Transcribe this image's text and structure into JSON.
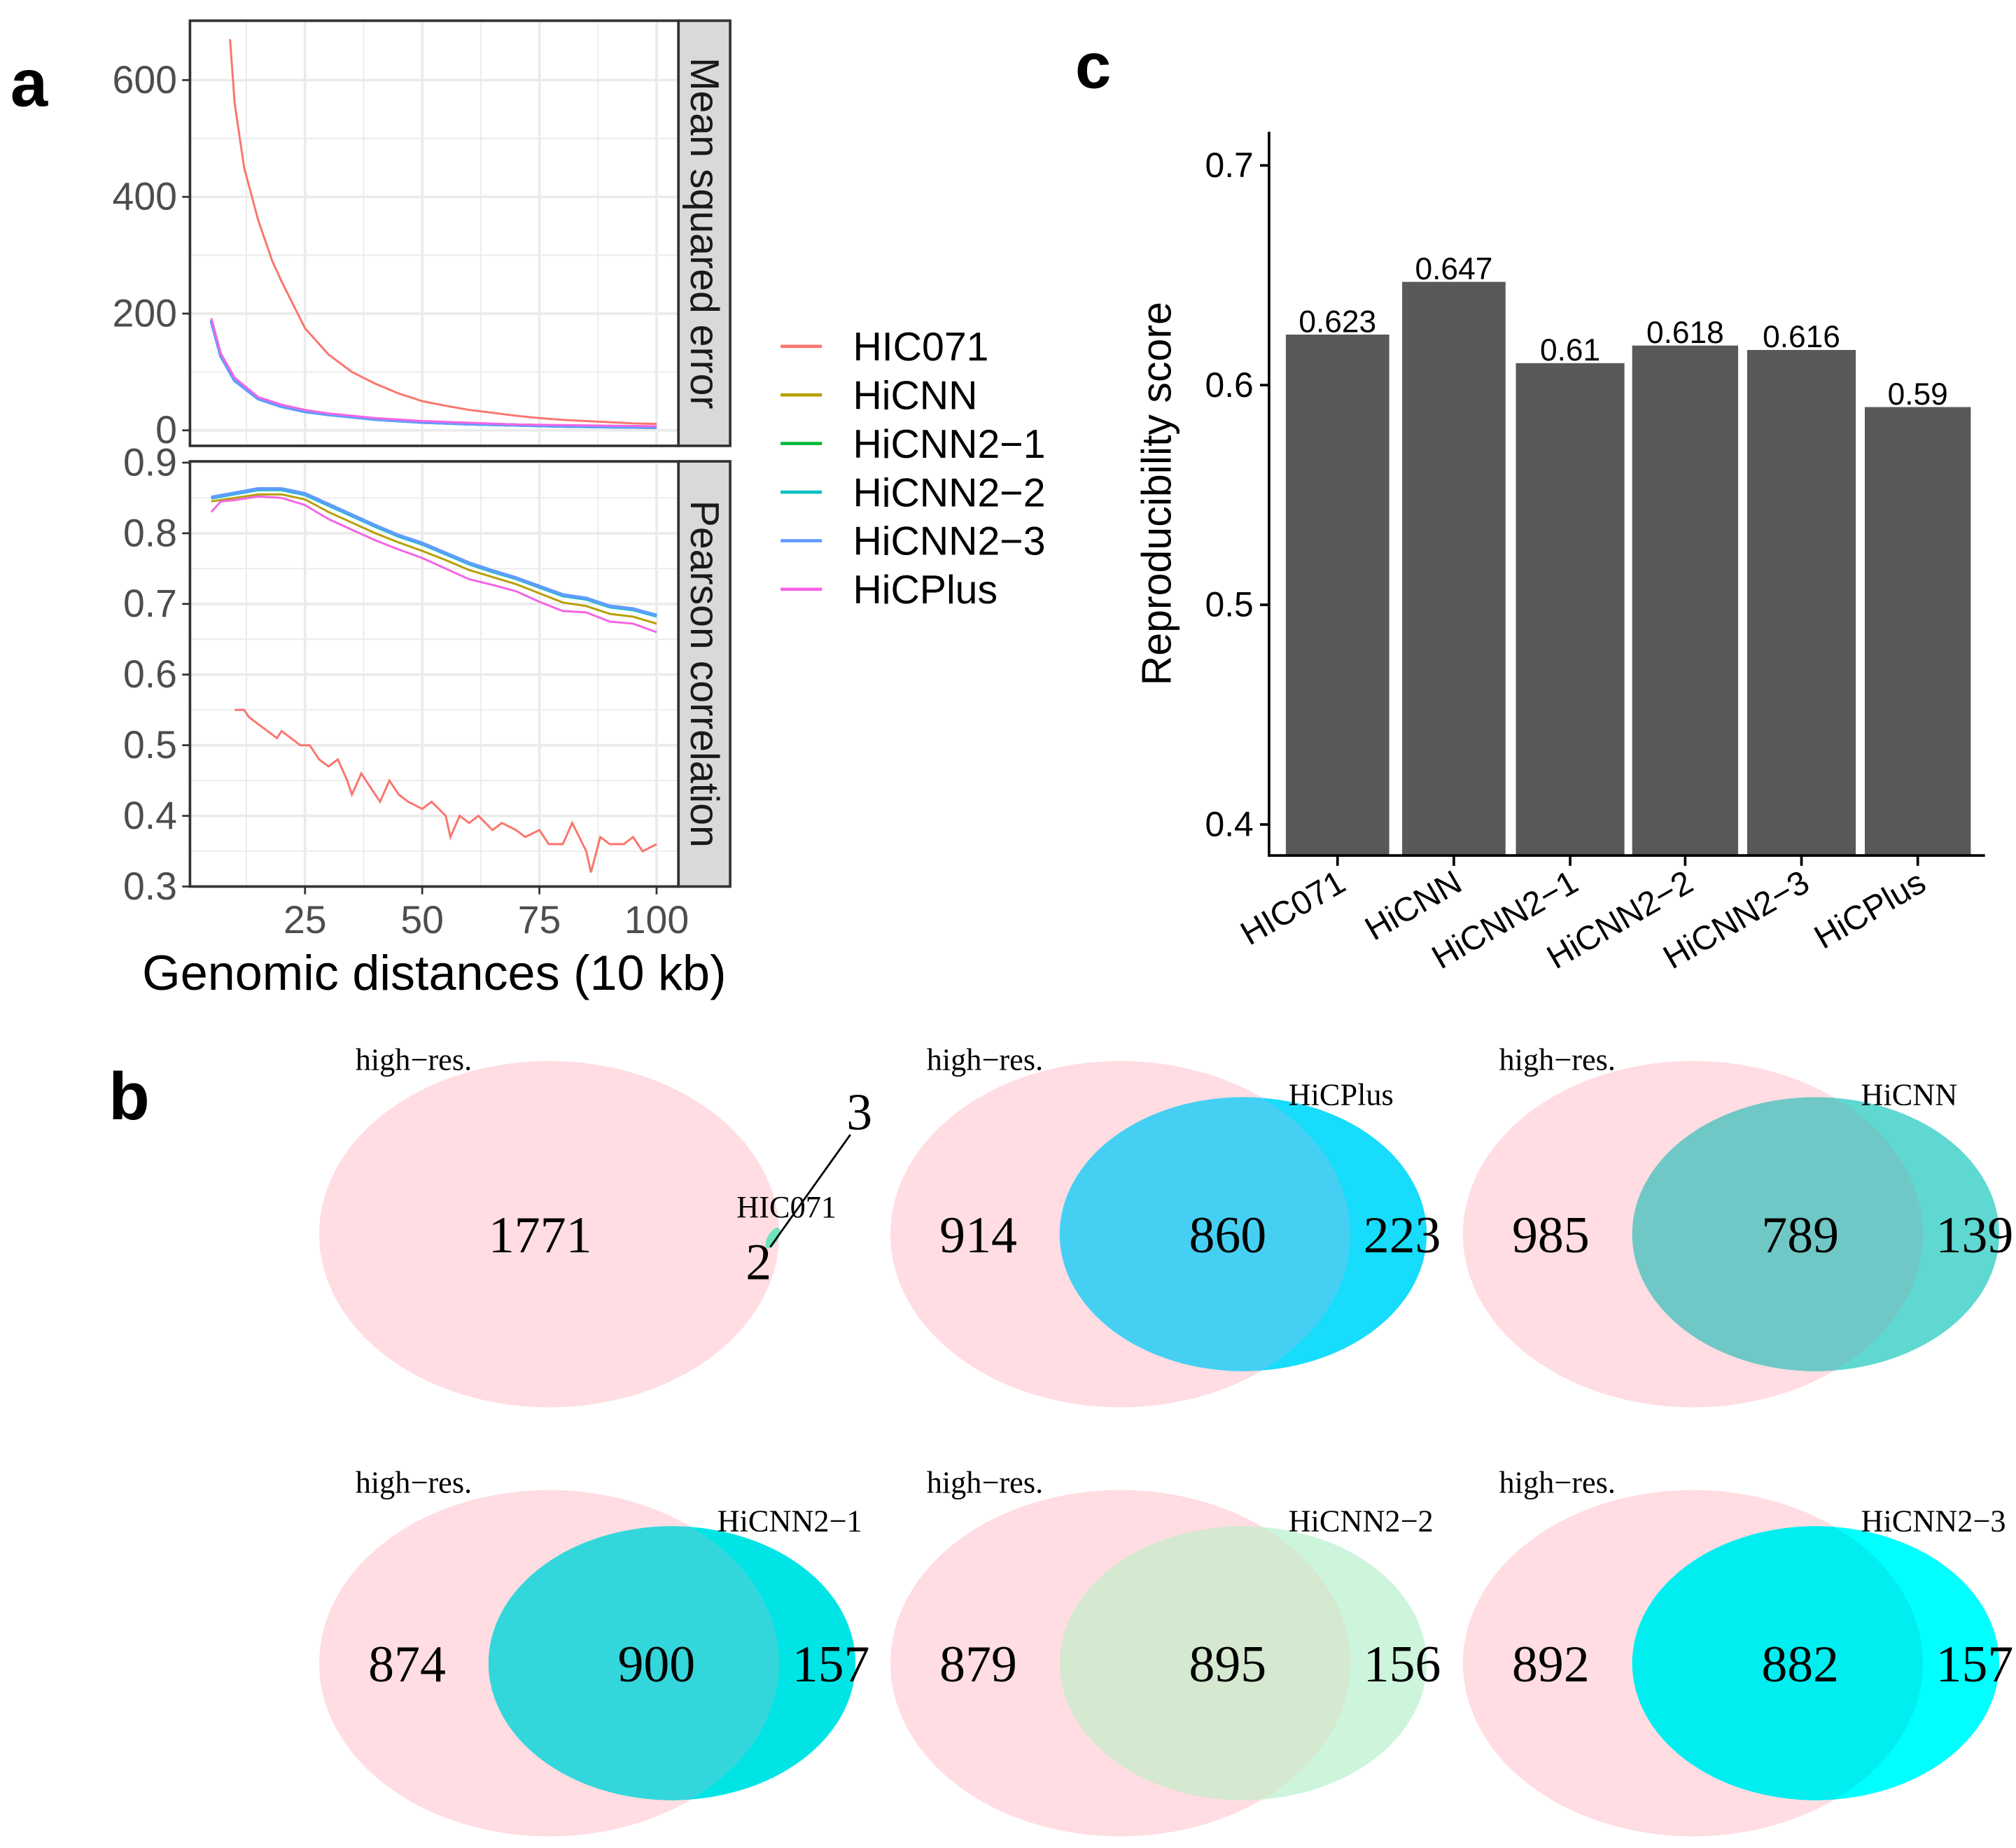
{
  "panel_labels": {
    "a": "a",
    "b": "b",
    "c": "c"
  },
  "colors": {
    "HIC071": "#F8766D",
    "HiCNN": "#B79F00",
    "HiCNN2-1": "#00BA38",
    "HiCNN2-2": "#00BFC4",
    "HiCNN2-3": "#619CFF",
    "HiCPlus": "#F564E3",
    "bar": "#595959",
    "venn_high_res": "#ffdde2",
    "grid": "#ebebeb",
    "strip": "#d9d9d9"
  },
  "chart_data": [
    {
      "type": "line",
      "panel": "a",
      "xlabel": "Genomic distances (10 kb)",
      "xticks": [
        25,
        50,
        75,
        100
      ],
      "xlim": [
        0,
        104
      ],
      "grid": true,
      "legend_position": "right",
      "legend": [
        "HIC071",
        "HiCNN",
        "HiCNN2−1",
        "HiCNN2−2",
        "HiCNN2−3",
        "HiCPlus"
      ],
      "facets": [
        {
          "strip": "Mean squared error",
          "ylim": [
            -8,
            700
          ],
          "yticks": [
            "0",
            "200",
            "400",
            "600"
          ],
          "ytick_values": [
            0,
            200,
            400,
            600
          ],
          "series": [
            {
              "key": "HIC071",
              "x": [
                9,
                10,
                12,
                15,
                18,
                20,
                25,
                30,
                35,
                40,
                45,
                50,
                55,
                60,
                65,
                70,
                75,
                80,
                85,
                90,
                95,
                100
              ],
              "y": [
                670,
                560,
                450,
                360,
                290,
                255,
                175,
                130,
                100,
                80,
                63,
                50,
                42,
                35,
                30,
                25,
                21,
                18,
                16,
                14,
                12,
                11
              ]
            },
            {
              "key": "HiCNN",
              "x": [
                5,
                7,
                10,
                15,
                20,
                25,
                30,
                40,
                50,
                60,
                70,
                80,
                90,
                100
              ],
              "y": [
                190,
                130,
                88,
                55,
                42,
                33,
                28,
                20,
                15,
                12,
                10,
                8,
                7,
                6
              ]
            },
            {
              "key": "HiCNN2-1",
              "x": [
                5,
                7,
                10,
                15,
                20,
                25,
                30,
                40,
                50,
                60,
                70,
                80,
                90,
                100
              ],
              "y": [
                188,
                128,
                86,
                54,
                41,
                32,
                27,
                19,
                14,
                11,
                9,
                7,
                6,
                5
              ]
            },
            {
              "key": "HiCNN2-2",
              "x": [
                5,
                7,
                10,
                15,
                20,
                25,
                30,
                40,
                50,
                60,
                70,
                80,
                90,
                100
              ],
              "y": [
                188,
                128,
                86,
                54,
                41,
                32,
                27,
                19,
                14,
                11,
                9,
                7,
                6,
                5
              ]
            },
            {
              "key": "HiCNN2-3",
              "x": [
                5,
                7,
                10,
                15,
                20,
                25,
                30,
                40,
                50,
                60,
                70,
                80,
                90,
                100
              ],
              "y": [
                187,
                127,
                85,
                54,
                41,
                32,
                27,
                19,
                14,
                11,
                9,
                7,
                6,
                5
              ]
            },
            {
              "key": "HiCPlus",
              "x": [
                5,
                7,
                10,
                15,
                20,
                25,
                30,
                40,
                50,
                60,
                70,
                80,
                90,
                100
              ],
              "y": [
                192,
                132,
                90,
                57,
                44,
                35,
                29,
                21,
                16,
                13,
                10,
                9,
                8,
                7
              ]
            }
          ]
        },
        {
          "strip": "Pearson correlation",
          "ylim": [
            0.3,
            0.9
          ],
          "yticks": [
            "0.3",
            "0.4",
            "0.5",
            "0.6",
            "0.7",
            "0.8",
            "0.9"
          ],
          "ytick_values": [
            0.3,
            0.4,
            0.5,
            0.6,
            0.7,
            0.8,
            0.9
          ],
          "series": [
            {
              "key": "HIC071",
              "x": [
                10,
                12,
                13,
                15,
                17,
                19,
                20,
                22,
                24,
                26,
                28,
                30,
                32,
                34,
                35,
                37,
                39,
                41,
                43,
                45,
                47,
                50,
                52,
                55,
                56,
                58,
                60,
                62,
                65,
                67,
                70,
                72,
                75,
                77,
                80,
                82,
                85,
                86,
                88,
                90,
                93,
                95,
                97,
                100
              ],
              "y": [
                0.55,
                0.55,
                0.54,
                0.53,
                0.52,
                0.51,
                0.52,
                0.51,
                0.5,
                0.5,
                0.48,
                0.47,
                0.48,
                0.45,
                0.43,
                0.46,
                0.44,
                0.42,
                0.45,
                0.43,
                0.42,
                0.41,
                0.42,
                0.4,
                0.37,
                0.4,
                0.39,
                0.4,
                0.38,
                0.39,
                0.38,
                0.37,
                0.38,
                0.36,
                0.36,
                0.39,
                0.35,
                0.32,
                0.37,
                0.36,
                0.36,
                0.37,
                0.35,
                0.36
              ]
            },
            {
              "key": "HiCNN",
              "x": [
                5,
                10,
                15,
                20,
                25,
                30,
                35,
                40,
                45,
                50,
                55,
                60,
                65,
                70,
                75,
                80,
                85,
                90,
                95,
                100
              ],
              "y": [
                0.845,
                0.85,
                0.855,
                0.855,
                0.848,
                0.83,
                0.815,
                0.8,
                0.787,
                0.775,
                0.762,
                0.748,
                0.738,
                0.728,
                0.715,
                0.702,
                0.697,
                0.686,
                0.682,
                0.672
              ]
            },
            {
              "key": "HiCNN2-1",
              "x": [
                5,
                10,
                15,
                20,
                25,
                30,
                35,
                40,
                45,
                50,
                55,
                60,
                65,
                70,
                75,
                80,
                85,
                90,
                95,
                100
              ],
              "y": [
                0.85,
                0.856,
                0.862,
                0.862,
                0.855,
                0.84,
                0.825,
                0.81,
                0.796,
                0.785,
                0.771,
                0.757,
                0.746,
                0.736,
                0.724,
                0.712,
                0.707,
                0.696,
                0.692,
                0.683
              ]
            },
            {
              "key": "HiCNN2-2",
              "x": [
                5,
                10,
                15,
                20,
                25,
                30,
                35,
                40,
                45,
                50,
                55,
                60,
                65,
                70,
                75,
                80,
                85,
                90,
                95,
                100
              ],
              "y": [
                0.85,
                0.856,
                0.862,
                0.862,
                0.855,
                0.84,
                0.825,
                0.81,
                0.796,
                0.785,
                0.771,
                0.757,
                0.746,
                0.736,
                0.724,
                0.712,
                0.707,
                0.696,
                0.692,
                0.683
              ]
            },
            {
              "key": "HiCNN2-3",
              "x": [
                5,
                10,
                15,
                20,
                25,
                30,
                35,
                40,
                45,
                50,
                55,
                60,
                65,
                70,
                75,
                80,
                85,
                90,
                95,
                100
              ],
              "y": [
                0.851,
                0.857,
                0.863,
                0.863,
                0.856,
                0.841,
                0.826,
                0.811,
                0.797,
                0.786,
                0.772,
                0.758,
                0.747,
                0.737,
                0.725,
                0.713,
                0.708,
                0.697,
                0.693,
                0.684
              ]
            },
            {
              "key": "HiCPlus",
              "x": [
                5,
                7,
                10,
                15,
                20,
                25,
                30,
                35,
                40,
                45,
                50,
                55,
                60,
                65,
                70,
                75,
                80,
                85,
                90,
                95,
                100
              ],
              "y": [
                0.83,
                0.845,
                0.847,
                0.852,
                0.85,
                0.84,
                0.82,
                0.805,
                0.79,
                0.777,
                0.765,
                0.75,
                0.735,
                0.727,
                0.718,
                0.703,
                0.69,
                0.688,
                0.675,
                0.672,
                0.66
              ]
            }
          ]
        }
      ]
    },
    {
      "type": "bar",
      "panel": "c",
      "ylabel": "Reproducibility score",
      "categories": [
        "HIC071",
        "HiCNN",
        "HiCNN2−1",
        "HiCNN2−2",
        "HiCNN2−3",
        "HiCPlus"
      ],
      "values": [
        0.623,
        0.647,
        0.61,
        0.618,
        0.616,
        0.59
      ],
      "value_labels": [
        "0.623",
        "0.647",
        "0.61",
        "0.618",
        "0.616",
        "0.59"
      ],
      "yticks": [
        "0.4",
        "0.5",
        "0.6",
        "0.7"
      ],
      "ytick_values": [
        0.4,
        0.5,
        0.6,
        0.7
      ],
      "ylim": [
        0.386,
        0.715
      ],
      "grid": false
    }
  ],
  "venns": [
    {
      "left_label": "high−res.",
      "right_label": "HIC071",
      "only_left": "1771",
      "overlap": "2",
      "only_right": "3",
      "other_color": "#6fe3c0",
      "overlap_color": "#7ee0cf",
      "tiny": true
    },
    {
      "left_label": "high−res.",
      "right_label": "HiCPlus",
      "only_left": "914",
      "overlap": "860",
      "only_right": "223",
      "other_color": "#17dcfb",
      "overlap_color": "#45d0f3"
    },
    {
      "left_label": "high−res.",
      "right_label": "HiCNN",
      "only_left": "985",
      "overlap": "789",
      "only_right": "139",
      "other_color": "#5ed8d0",
      "overlap_color": "#70c8c6"
    },
    {
      "left_label": "high−res.",
      "right_label": "HiCNN2−1",
      "only_left": "874",
      "overlap": "900",
      "only_right": "157",
      "other_color": "#00e4e6",
      "overlap_color": "#33d7db"
    },
    {
      "left_label": "high−res.",
      "right_label": "HiCNN2−2",
      "only_left": "879",
      "overlap": "895",
      "only_right": "156",
      "other_color": "#cdf5dc",
      "overlap_color": "#d5e8d0"
    },
    {
      "left_label": "high−res.",
      "right_label": "HiCNN2−3",
      "only_left": "892",
      "overlap": "882",
      "only_right": "157",
      "other_color": "#00ffff",
      "overlap_color": "#00eef0"
    }
  ]
}
